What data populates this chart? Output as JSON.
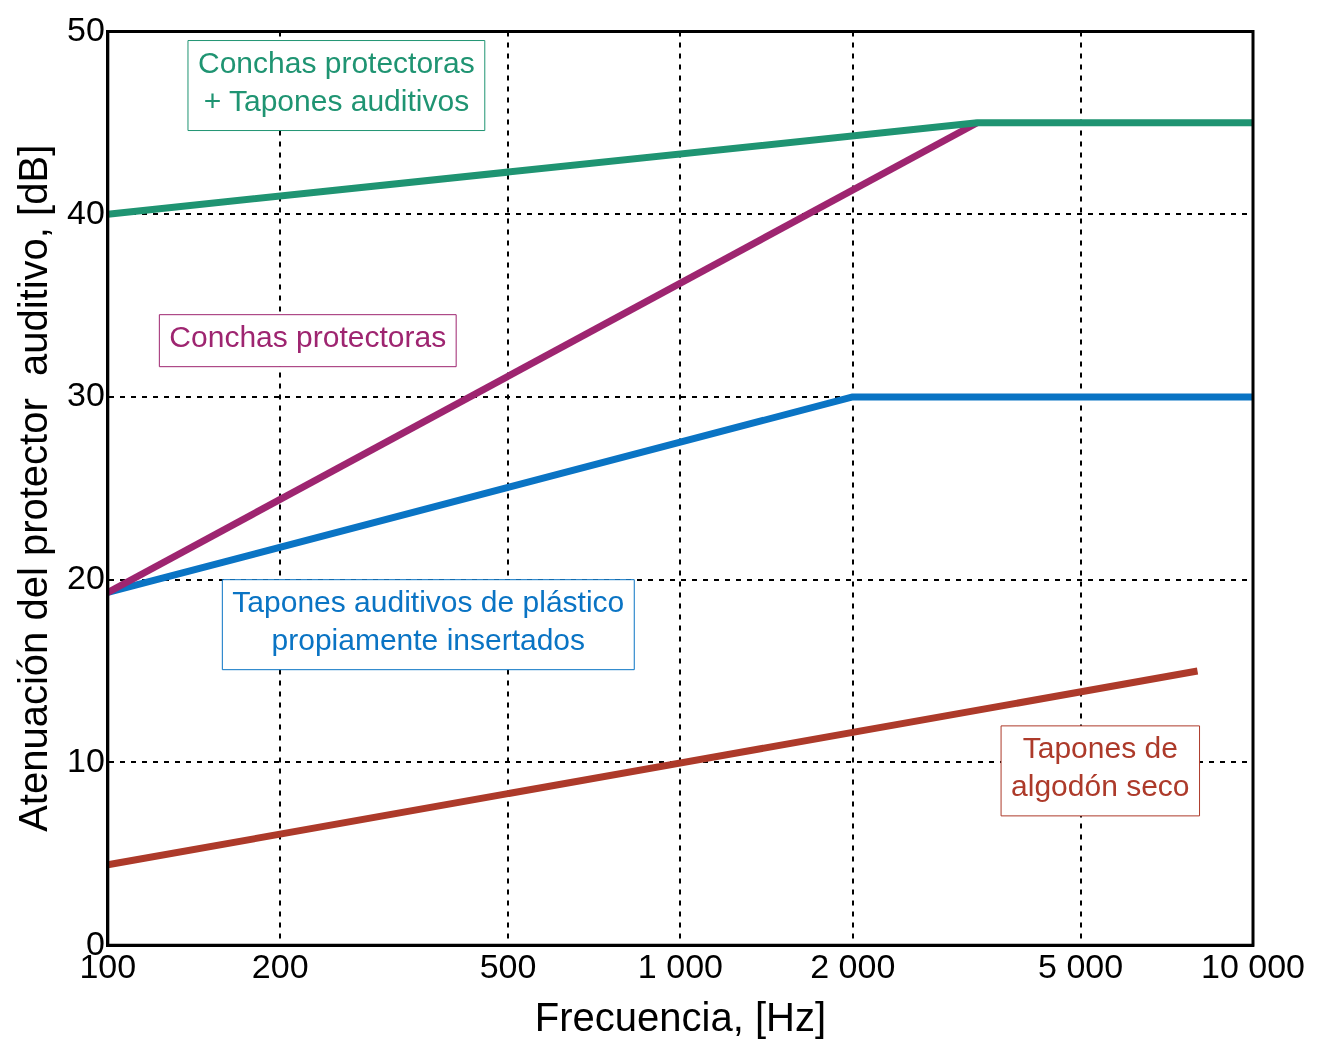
{
  "chart_data": {
    "type": "line",
    "xlabel": "Frecuencia, [Hz]",
    "ylabel": "Atenuación del protector  auditivo, [dB]",
    "log": "x",
    "grid": true,
    "legend": false,
    "line_style": "solid",
    "marker": "none",
    "xlim": [
      100,
      10000
    ],
    "xticks": [
      100,
      200,
      500,
      {
        "value": 1000,
        "label": "1 000"
      },
      {
        "value": 2000,
        "label": "2 000"
      },
      {
        "value": 5000,
        "label": "5 000"
      },
      {
        "value": 10000,
        "label": "10 000"
      }
    ],
    "ylim": [
      0,
      50
    ],
    "yticks": [
      0,
      10,
      20,
      30,
      40,
      50
    ],
    "series": [
      {
        "name": "Conchas protectoras + Tapones auditivos",
        "color": "#1f9472",
        "x": [
          100,
          3300,
          10000
        ],
        "values": [
          40,
          45,
          45
        ]
      },
      {
        "name": "Conchas protectoras",
        "color": "#9e2570",
        "x": [
          100,
          3300
        ],
        "values": [
          19.3,
          45
        ]
      },
      {
        "name": "Tapones auditivos de plástico propiamente insertados",
        "color": "#0a74c4",
        "x": [
          100,
          2000,
          10000
        ],
        "values": [
          19.3,
          30,
          30
        ]
      },
      {
        "name": "Tapones de algodón seco",
        "color": "#ad3a2a",
        "x": [
          100,
          8000
        ],
        "values": [
          4.4,
          15
        ]
      }
    ]
  }
}
